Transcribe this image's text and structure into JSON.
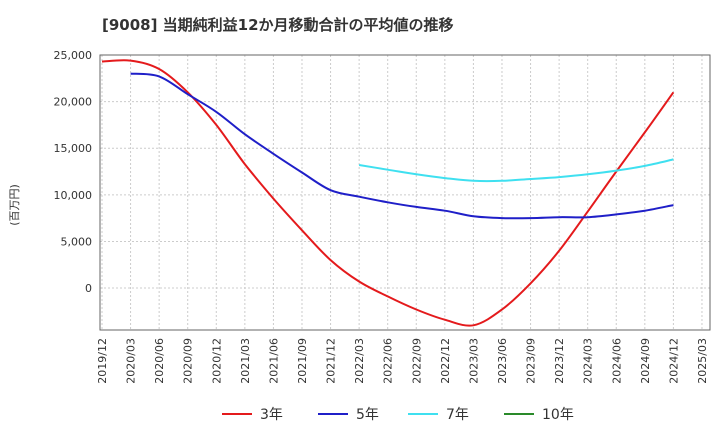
{
  "chart_data": {
    "type": "line",
    "title": "[9008]  当期純利益12か月移動合計の平均値の推移",
    "ylabel": "(百万円)",
    "xlabel": "",
    "ylim": [
      -4500,
      25000
    ],
    "yticks": [
      0,
      5000,
      10000,
      15000,
      20000,
      25000
    ],
    "ytick_labels": [
      "0",
      "5,000",
      "10,000",
      "15,000",
      "20,000",
      "25,000"
    ],
    "categories": [
      "2019/12",
      "2020/03",
      "2020/06",
      "2020/09",
      "2020/12",
      "2021/03",
      "2021/06",
      "2021/09",
      "2021/12",
      "2022/03",
      "2022/06",
      "2022/09",
      "2022/12",
      "2023/03",
      "2023/06",
      "2023/09",
      "2023/12",
      "2024/03",
      "2024/06",
      "2024/09",
      "2024/12",
      "2025/03"
    ],
    "grid": true,
    "legend_position": "bottom",
    "series": [
      {
        "name": "3年",
        "color": "#e41a1c",
        "values": [
          24300,
          24400,
          23500,
          21000,
          17500,
          13300,
          9600,
          6200,
          3000,
          700,
          -900,
          -2300,
          -3400,
          -4000,
          -2300,
          500,
          4000,
          8200,
          12500,
          16700,
          21000,
          null
        ]
      },
      {
        "name": "5年",
        "color": "#1f1fc8",
        "values": [
          null,
          23000,
          22700,
          20800,
          18900,
          16500,
          14400,
          12400,
          10500,
          9800,
          9200,
          8700,
          8300,
          7700,
          7500,
          7500,
          7600,
          7600,
          7900,
          8300,
          8900,
          null
        ]
      },
      {
        "name": "7年",
        "color": "#3fe0f0",
        "values": [
          null,
          null,
          null,
          null,
          null,
          null,
          null,
          null,
          null,
          13200,
          12700,
          12200,
          11800,
          11500,
          11500,
          11700,
          11900,
          12200,
          12600,
          13100,
          13800,
          null
        ]
      },
      {
        "name": "10年",
        "color": "#2a8a2a",
        "values": [
          null,
          null,
          null,
          null,
          null,
          null,
          null,
          null,
          null,
          null,
          null,
          null,
          null,
          null,
          null,
          null,
          null,
          null,
          null,
          null,
          null,
          null
        ]
      }
    ]
  }
}
